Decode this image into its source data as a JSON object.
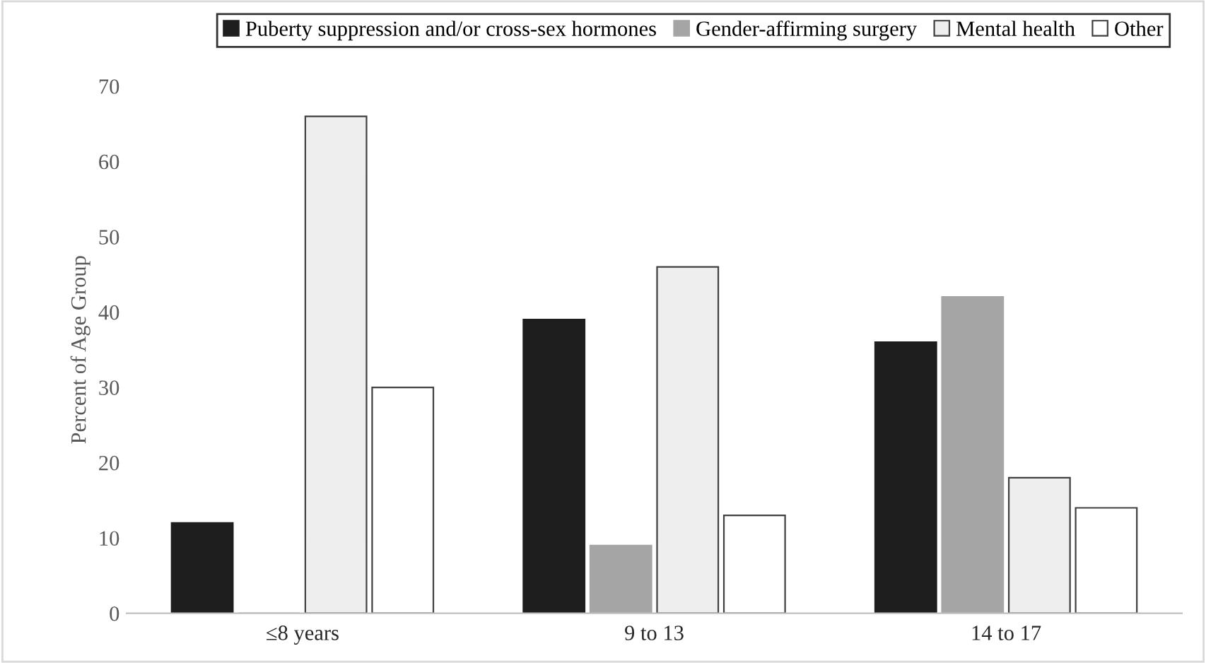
{
  "chart_data": {
    "type": "bar",
    "ylabel": "Percent of Age Group",
    "categories": [
      "≤8 years",
      "9 to 13",
      "14 to 17"
    ],
    "series": [
      {
        "name": "Puberty suppression and/or cross-sex hormones",
        "color": "#1e1e1e",
        "values": [
          12,
          39,
          36
        ]
      },
      {
        "name": "Gender-affirming surgery",
        "color": "#a5a5a5",
        "values": [
          0,
          9,
          42
        ]
      },
      {
        "name": "Mental health",
        "color": "#eeeeee",
        "values": [
          66,
          46,
          18
        ]
      },
      {
        "name": "Other",
        "color": "#ffffff",
        "values": [
          30,
          13,
          14
        ]
      }
    ],
    "ylim": [
      0,
      70
    ],
    "yticks": [
      0,
      10,
      20,
      30,
      40,
      50,
      60,
      70
    ],
    "grid": false,
    "legend": "top"
  }
}
